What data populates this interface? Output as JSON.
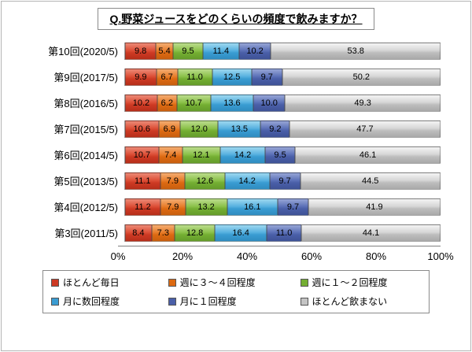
{
  "title": "Q.野菜ジュースをどのくらいの頻度で飲みますか？",
  "chart_data": {
    "type": "bar",
    "orientation": "horizontal",
    "stacked": true,
    "grid": false,
    "legend_position": "bottom",
    "xlim": [
      0,
      100
    ],
    "x_ticks": [
      "0%",
      "20%",
      "40%",
      "60%",
      "80%",
      "100%"
    ],
    "categories": [
      "第10回(2020/5)",
      "第9回(2017/5)",
      "第8回(2016/5)",
      "第7回(2015/5)",
      "第6回(2014/5)",
      "第5回(2013/5)",
      "第4回(2012/5)",
      "第3回(2011/5)"
    ],
    "series": [
      {
        "name": "ほとんど毎日",
        "color": "#cd3a24",
        "values": [
          9.8,
          9.9,
          10.2,
          10.6,
          10.7,
          11.1,
          11.2,
          8.4
        ]
      },
      {
        "name": "週に３～４回程度",
        "color": "#dd6a12",
        "values": [
          5.4,
          6.7,
          6.2,
          6.9,
          7.4,
          7.9,
          7.9,
          7.3
        ]
      },
      {
        "name": "週に１～２回程度",
        "color": "#74ae33",
        "values": [
          9.5,
          11.0,
          10.7,
          12.0,
          12.1,
          12.6,
          13.2,
          12.8
        ]
      },
      {
        "name": "月に数回程度",
        "color": "#3a9cd2",
        "values": [
          11.4,
          12.5,
          13.6,
          13.5,
          14.2,
          14.2,
          16.1,
          16.4
        ]
      },
      {
        "name": "月に１回程度",
        "color": "#4a5fa8",
        "values": [
          10.2,
          9.7,
          10.0,
          9.2,
          9.5,
          9.7,
          9.7,
          11.0
        ]
      },
      {
        "name": "ほとんど飲まない",
        "color": "#c4c4c4",
        "values": [
          53.8,
          50.2,
          49.3,
          47.7,
          46.1,
          44.5,
          41.9,
          44.1
        ]
      }
    ]
  }
}
